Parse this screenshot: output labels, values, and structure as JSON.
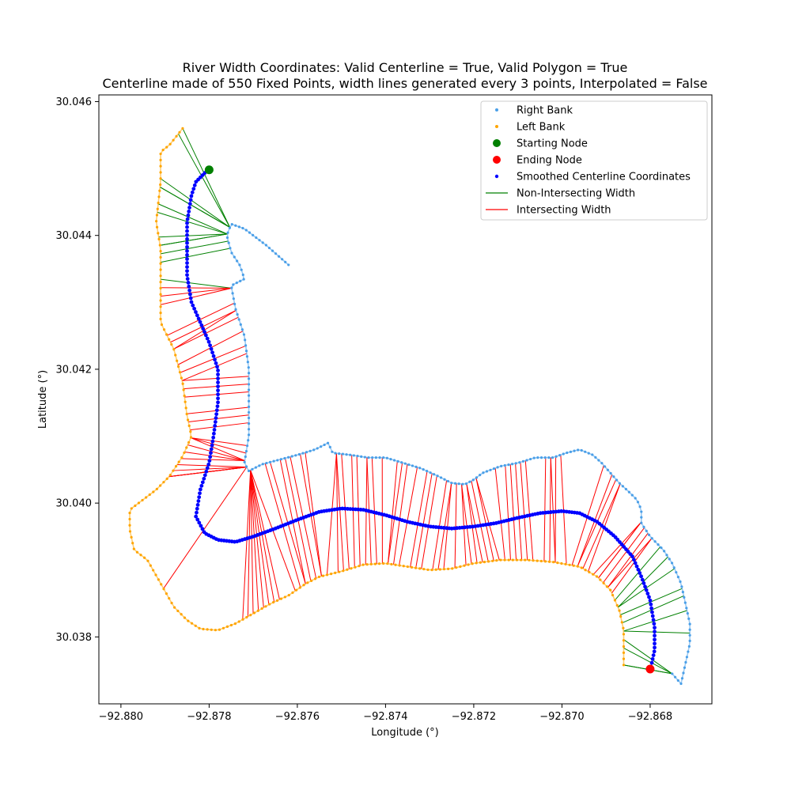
{
  "chart_data": {
    "type": "scatter",
    "title": "River Width Coordinates: Valid Centerline = True, Valid Polygon = True",
    "subtitle": "Centerline made of 550 Fixed Points, width lines generated every 3 points, Interpolated = False",
    "xlabel": "Longitude (°)",
    "ylabel": "Latitude (°)",
    "xlim": [
      -92.8805,
      -92.8666
    ],
    "ylim": [
      30.037,
      30.0461
    ],
    "xticks": [
      -92.88,
      -92.878,
      -92.876,
      -92.874,
      -92.872,
      -92.87,
      -92.868
    ],
    "xtick_labels": [
      "−92.880",
      "−92.878",
      "−92.876",
      "−92.874",
      "−92.872",
      "−92.870",
      "−92.868"
    ],
    "yticks": [
      30.038,
      30.04,
      30.042,
      30.044,
      30.046
    ],
    "ytick_labels": [
      "30.038",
      "30.040",
      "30.042",
      "30.044",
      "30.046"
    ],
    "grid": false,
    "legend_position": "top-right",
    "legend": [
      {
        "label": "Right Bank",
        "kind": "dot",
        "color": "#4a9fe8"
      },
      {
        "label": "Left Bank",
        "kind": "dot",
        "color": "#ffa500"
      },
      {
        "label": "Starting Node",
        "kind": "big-dot",
        "color": "#008000"
      },
      {
        "label": "Ending Node",
        "kind": "big-dot",
        "color": "#ff0000"
      },
      {
        "label": "Smoothed Centerline Coordinates",
        "kind": "small-dot",
        "color": "#0000ff"
      },
      {
        "label": "Non-Intersecting Width",
        "kind": "line",
        "color": "#008000"
      },
      {
        "label": "Intersecting Width",
        "kind": "line",
        "color": "#ff0000"
      }
    ],
    "right_bank": [
      [
        -92.8762,
        30.04356
      ],
      [
        -92.8767,
        30.04385
      ],
      [
        -92.8772,
        30.0441
      ],
      [
        -92.8775,
        30.04417
      ],
      [
        -92.8776,
        30.044
      ],
      [
        -92.8775,
        30.04375
      ],
      [
        -92.8773,
        30.04355
      ],
      [
        -92.8772,
        30.04335
      ],
      [
        -92.8775,
        30.04325
      ],
      [
        -92.8774,
        30.0429
      ],
      [
        -92.8772,
        30.0425
      ],
      [
        -92.8771,
        30.042
      ],
      [
        -92.8771,
        30.0415
      ],
      [
        -92.8771,
        30.041
      ],
      [
        -92.8772,
        30.0406
      ],
      [
        -92.8771,
        30.04048
      ],
      [
        -92.8768,
        30.04058
      ],
      [
        -92.8764,
        30.04065
      ],
      [
        -92.876,
        30.04072
      ],
      [
        -92.8756,
        30.0408
      ],
      [
        -92.8753,
        30.0409
      ],
      [
        -92.8752,
        30.04075
      ],
      [
        -92.8748,
        30.04072
      ],
      [
        -92.8744,
        30.04068
      ],
      [
        -92.874,
        30.04068
      ],
      [
        -92.8736,
        30.0406
      ],
      [
        -92.8732,
        30.04052
      ],
      [
        -92.8728,
        30.0404
      ],
      [
        -92.8725,
        30.0403
      ],
      [
        -92.8722,
        30.04028
      ],
      [
        -92.872,
        30.04035
      ],
      [
        -92.8718,
        30.04045
      ],
      [
        -92.8714,
        30.04055
      ],
      [
        -92.871,
        30.0406
      ],
      [
        -92.8706,
        30.04068
      ],
      [
        -92.8702,
        30.04068
      ],
      [
        -92.8699,
        30.04075
      ],
      [
        -92.8696,
        30.0408
      ],
      [
        -92.8693,
        30.04072
      ],
      [
        -92.8691,
        30.0406
      ],
      [
        -92.8689,
        30.04045
      ],
      [
        -92.8687,
        30.0403
      ],
      [
        -92.8685,
        30.04018
      ],
      [
        -92.8683,
        30.04005
      ],
      [
        -92.8682,
        30.0399
      ],
      [
        -92.8682,
        30.0397
      ],
      [
        -92.868,
        30.0395
      ],
      [
        -92.8677,
        30.0393
      ],
      [
        -92.8675,
        30.0391
      ],
      [
        -92.8673,
        30.0388
      ],
      [
        -92.8672,
        30.0385
      ],
      [
        -92.8671,
        30.0382
      ],
      [
        -92.8671,
        30.0379
      ],
      [
        -92.8672,
        30.0376
      ],
      [
        -92.8673,
        30.0373
      ],
      [
        -92.8675,
        30.03745
      ]
    ],
    "left_bank": [
      [
        -92.8786,
        30.0456
      ],
      [
        -92.8789,
        30.04535
      ],
      [
        -92.8791,
        30.04525
      ],
      [
        -92.8791,
        30.0448
      ],
      [
        -92.8792,
        30.0442
      ],
      [
        -92.8791,
        30.0438
      ],
      [
        -92.8791,
        30.0432
      ],
      [
        -92.8791,
        30.0427
      ],
      [
        -92.8788,
        30.0423
      ],
      [
        -92.8786,
        30.0418
      ],
      [
        -92.8785,
        30.0413
      ],
      [
        -92.8784,
        30.041
      ],
      [
        -92.8786,
        30.0407
      ],
      [
        -92.8789,
        30.0404
      ],
      [
        -92.8792,
        30.0402
      ],
      [
        -92.8795,
        30.04005
      ],
      [
        -92.8798,
        30.0399
      ],
      [
        -92.8798,
        30.0396
      ],
      [
        -92.8797,
        30.0393
      ],
      [
        -92.8794,
        30.03915
      ],
      [
        -92.8791,
        30.0388
      ],
      [
        -92.8788,
        30.03845
      ],
      [
        -92.8785,
        30.03825
      ],
      [
        -92.8782,
        30.03812
      ],
      [
        -92.8778,
        30.0381
      ],
      [
        -92.8774,
        30.0382
      ],
      [
        -92.877,
        30.03835
      ],
      [
        -92.8766,
        30.0385
      ],
      [
        -92.8762,
        30.03862
      ],
      [
        -92.8758,
        30.0388
      ],
      [
        -92.8755,
        30.0389
      ],
      [
        -92.875,
        30.03898
      ],
      [
        -92.8745,
        30.03908
      ],
      [
        -92.874,
        30.0391
      ],
      [
        -92.8735,
        30.03905
      ],
      [
        -92.873,
        30.039
      ],
      [
        -92.8725,
        30.03902
      ],
      [
        -92.872,
        30.0391
      ],
      [
        -92.8714,
        30.03915
      ],
      [
        -92.8708,
        30.03915
      ],
      [
        -92.8702,
        30.03912
      ],
      [
        -92.8696,
        30.03905
      ],
      [
        -92.8692,
        30.0389
      ],
      [
        -92.8689,
        30.0387
      ],
      [
        -92.8687,
        30.0384
      ],
      [
        -92.8686,
        30.0381
      ],
      [
        -92.8686,
        30.0378
      ],
      [
        -92.8686,
        30.03758
      ]
    ],
    "centerline": [
      [
        -92.878,
        30.045
      ],
      [
        -92.8783,
        30.0448
      ],
      [
        -92.8784,
        30.0446
      ],
      [
        -92.8785,
        30.0442
      ],
      [
        -92.8785,
        30.0438
      ],
      [
        -92.8785,
        30.0434
      ],
      [
        -92.8784,
        30.043
      ],
      [
        -92.8782,
        30.0427
      ],
      [
        -92.878,
        30.0424
      ],
      [
        -92.8778,
        30.042
      ],
      [
        -92.8778,
        30.0415
      ],
      [
        -92.8779,
        30.041
      ],
      [
        -92.878,
        30.0406
      ],
      [
        -92.8782,
        30.0402
      ],
      [
        -92.8783,
        30.0398
      ],
      [
        -92.8781,
        30.03955
      ],
      [
        -92.8778,
        30.03945
      ],
      [
        -92.8774,
        30.03942
      ],
      [
        -92.877,
        30.0395
      ],
      [
        -92.8765,
        30.03962
      ],
      [
        -92.876,
        30.03975
      ],
      [
        -92.8755,
        30.03987
      ],
      [
        -92.875,
        30.03992
      ],
      [
        -92.8745,
        30.0399
      ],
      [
        -92.874,
        30.03982
      ],
      [
        -92.8735,
        30.03972
      ],
      [
        -92.873,
        30.03965
      ],
      [
        -92.8725,
        30.03962
      ],
      [
        -92.872,
        30.03965
      ],
      [
        -92.8715,
        30.0397
      ],
      [
        -92.871,
        30.03978
      ],
      [
        -92.8705,
        30.03985
      ],
      [
        -92.87,
        30.03988
      ],
      [
        -92.8696,
        30.03985
      ],
      [
        -92.8692,
        30.03972
      ],
      [
        -92.8688,
        30.0395
      ],
      [
        -92.8684,
        30.0392
      ],
      [
        -92.8682,
        30.0389
      ],
      [
        -92.868,
        30.03855
      ],
      [
        -92.8679,
        30.03815
      ],
      [
        -92.8679,
        30.0378
      ],
      [
        -92.868,
        30.0375
      ]
    ],
    "starting_node": [
      -92.878,
      30.04498
    ],
    "ending_node": [
      -92.868,
      30.03752
    ]
  }
}
